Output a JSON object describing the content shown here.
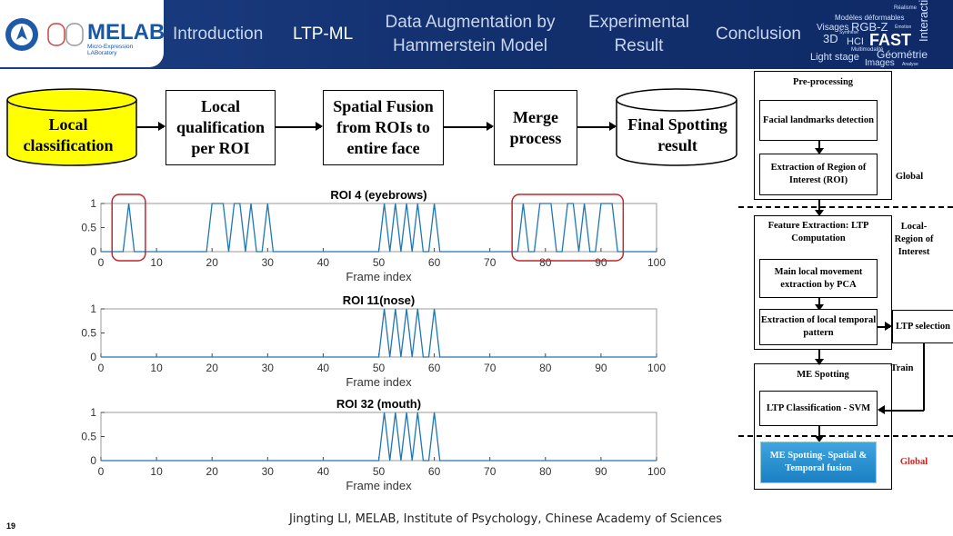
{
  "header": {
    "logo_text": "MELAB",
    "logo_subtext": "Micro-Expression LABoratory",
    "nav": [
      "Introduction",
      "LTP-ML",
      "Data Augmentation by Hammerstein Model",
      "Experimental Result",
      "Conclusion"
    ],
    "active": "LTP-ML",
    "word_cloud": [
      "Réalisme",
      "Modèles déformables",
      "Visages",
      "RGB-Z",
      "Émotion",
      "3D",
      "Synthèse",
      "HCI",
      "FAST",
      "Interaction",
      "Multimodalité",
      "Géométrie",
      "Light stage",
      "Images",
      "Analyse"
    ]
  },
  "flow": {
    "local_classification": "Local classification",
    "local_qualification": "Local qualification per ROI",
    "spatial_fusion": "Spatial Fusion from ROIs to entire face",
    "merge": "Merge process",
    "final": "Final Spotting result"
  },
  "pipeline": {
    "preprocessing": "Pre-processing",
    "landmarks": "Facial landmarks detection",
    "roi_extraction": "Extraction of Region of Interest (ROI)",
    "global1": "Global",
    "feature_extraction": "Feature Extraction: LTP Computation",
    "local_roi": "Local-Region of Interest",
    "pca": "Main local movement extraction by PCA",
    "local_temporal": "Extraction of local temporal pattern",
    "ltp_selection": "LTP selection",
    "train": "Train",
    "me_spotting": "ME Spotting",
    "ltp_svm": "LTP Classification - SVM",
    "fusion": "ME Spotting- Spatial & Temporal fusion",
    "global2": "Global"
  },
  "chart_data": [
    {
      "type": "line",
      "title": "ROI 4 (eyebrows)",
      "xlabel": "Frame index",
      "ylabel": "",
      "xlim": [
        0,
        100
      ],
      "ylim": [
        0,
        1
      ],
      "xticks": [
        0,
        10,
        20,
        30,
        40,
        50,
        60,
        70,
        80,
        90,
        100
      ],
      "yticks": [
        0,
        0.5,
        1
      ],
      "color": "#1f77b4",
      "frames_at_1": [
        5,
        20,
        21,
        22,
        24,
        25,
        27,
        30,
        51,
        53,
        55,
        57,
        60,
        76,
        79,
        80,
        81,
        84,
        85,
        87,
        90,
        91,
        92
      ],
      "highlight_ranges": [
        [
          2,
          8
        ],
        [
          74,
          94
        ]
      ]
    },
    {
      "type": "line",
      "title": "ROI 11(nose)",
      "xlabel": "Frame index",
      "ylabel": "",
      "xlim": [
        0,
        100
      ],
      "ylim": [
        0,
        1
      ],
      "xticks": [
        0,
        10,
        20,
        30,
        40,
        50,
        60,
        70,
        80,
        90,
        100
      ],
      "yticks": [
        0,
        0.5,
        1
      ],
      "color": "#1f77b4",
      "frames_at_1": [
        51,
        53,
        55,
        57,
        60
      ],
      "highlight_ranges": []
    },
    {
      "type": "line",
      "title": "ROI 32 (mouth)",
      "xlabel": "Frame index",
      "ylabel": "",
      "xlim": [
        0,
        100
      ],
      "ylim": [
        0,
        1
      ],
      "xticks": [
        0,
        10,
        20,
        30,
        40,
        50,
        60,
        70,
        80,
        90,
        100
      ],
      "yticks": [
        0,
        0.5,
        1
      ],
      "color": "#1f77b4",
      "frames_at_1": [
        51,
        53,
        55,
        57,
        60
      ],
      "highlight_ranges": []
    }
  ],
  "footer": {
    "page": "19",
    "credit": "Jingting LI, MELAB, Institute of Psychology, Chinese Academy of Sciences"
  }
}
